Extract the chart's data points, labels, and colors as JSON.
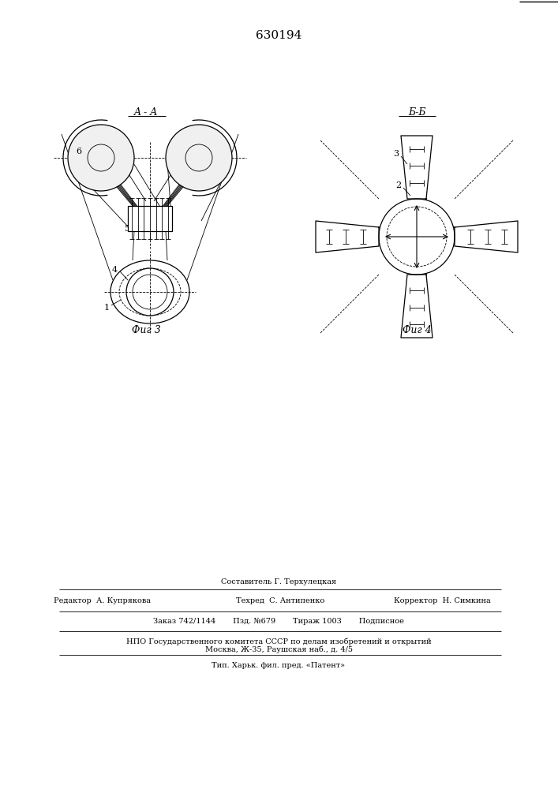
{
  "patent_number": "630194",
  "background_color": "#ffffff",
  "line_color": "#000000",
  "fig_width": 7.07,
  "fig_height": 10.0,
  "dpi": 100,
  "label_AA": "A - A",
  "label_BB": "Б-Б",
  "label_fig3": "Фиг 3",
  "label_fig4": "Фиг 4",
  "footer_line1_left": "Редактор  А. Купрякова",
  "footer_line1_mid": "Техред  С. Антипенко",
  "footer_line1_right": "Корректор  Н. Симкина",
  "footer_line2": "Заказ 742/1144       Пзд. №679       Тираж 1003       Подписное",
  "footer_line3": "НПО Государственного комитета СССР по делам изобретений и открытий",
  "footer_line4": "Москва, Ж-35, Раушская наб., д. 4/5",
  "footer_line5": "Тип. Харьк. фил. пред. «Патент»",
  "footer_composer": "Составитель Г. Терхулецкая"
}
